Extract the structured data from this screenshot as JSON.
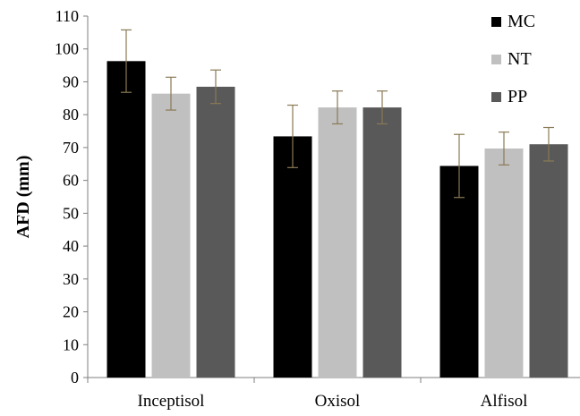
{
  "chart_data": {
    "type": "bar",
    "title": "",
    "xlabel": "",
    "ylabel": "AFD (mm)",
    "ylim": [
      0,
      110
    ],
    "yticks": [
      0,
      10,
      20,
      30,
      40,
      50,
      60,
      70,
      80,
      90,
      100,
      110
    ],
    "grid": false,
    "legend_position": "top-right",
    "categories": [
      "Inceptisol",
      "Oxisol",
      "Alfisol"
    ],
    "series": [
      {
        "name": "MC",
        "color": "#000000",
        "values": [
          96.3,
          73.4,
          64.4
        ],
        "errors": [
          9.5,
          9.5,
          9.6
        ]
      },
      {
        "name": "NT",
        "color": "#c0c0c0",
        "values": [
          86.4,
          82.2,
          69.7
        ],
        "errors": [
          5.0,
          5.0,
          5.0
        ]
      },
      {
        "name": "PP",
        "color": "#595959",
        "values": [
          88.5,
          82.2,
          71.0
        ],
        "errors": [
          5.1,
          5.0,
          5.1
        ]
      }
    ],
    "error_bar_color": "#8a7a55"
  }
}
